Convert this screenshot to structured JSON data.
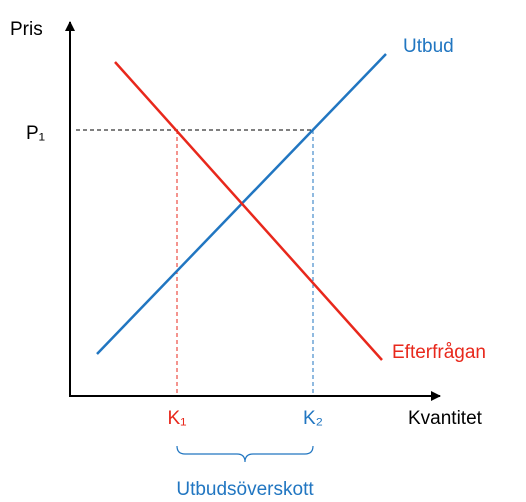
{
  "diagram": {
    "y_axis_label": "Pris",
    "x_axis_label": "Kvantitet",
    "price_label": "P₁",
    "supply_label": "Utbud",
    "demand_label": "Efterfrågan",
    "quantity_demanded_label": "K₁",
    "quantity_supplied_label": "K₂",
    "surplus_label": "Utbudsöverskott"
  }
}
